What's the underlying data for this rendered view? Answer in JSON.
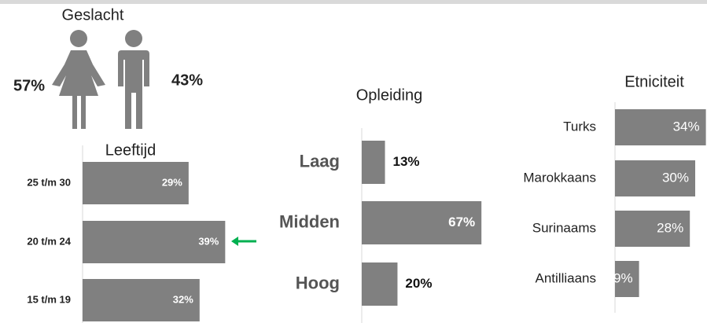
{
  "chart_data": [
    {
      "type": "pictogram",
      "title": "Geslacht",
      "values": [
        57,
        43
      ],
      "value_labels": [
        "57%",
        "43%"
      ],
      "color": "#808080"
    },
    {
      "type": "bar",
      "title": "Leeftijd",
      "categories": [
        "25 t/m 30",
        "20 t/m 24",
        "15 t/m 19"
      ],
      "values": [
        29,
        39,
        32
      ],
      "value_labels": [
        "29%",
        "39%",
        "32%"
      ],
      "color": "#808080",
      "xlim": [
        0,
        40
      ]
    },
    {
      "type": "bar",
      "title": "Opleiding",
      "categories": [
        "Laag",
        "Midden",
        "Hoog"
      ],
      "values": [
        13,
        67,
        20
      ],
      "value_labels": [
        "13%",
        "67%",
        "20%"
      ],
      "color": "#808080",
      "xlim": [
        0,
        70
      ]
    },
    {
      "type": "bar",
      "title": "Etniciteit",
      "categories": [
        "Turks",
        "Marokkaans",
        "Surinaams",
        "Antilliaans"
      ],
      "values": [
        34,
        30,
        28,
        9
      ],
      "value_labels": [
        "34%",
        "30%",
        "28%",
        "9%"
      ],
      "color": "#808080",
      "xlim": [
        0,
        35
      ]
    }
  ]
}
